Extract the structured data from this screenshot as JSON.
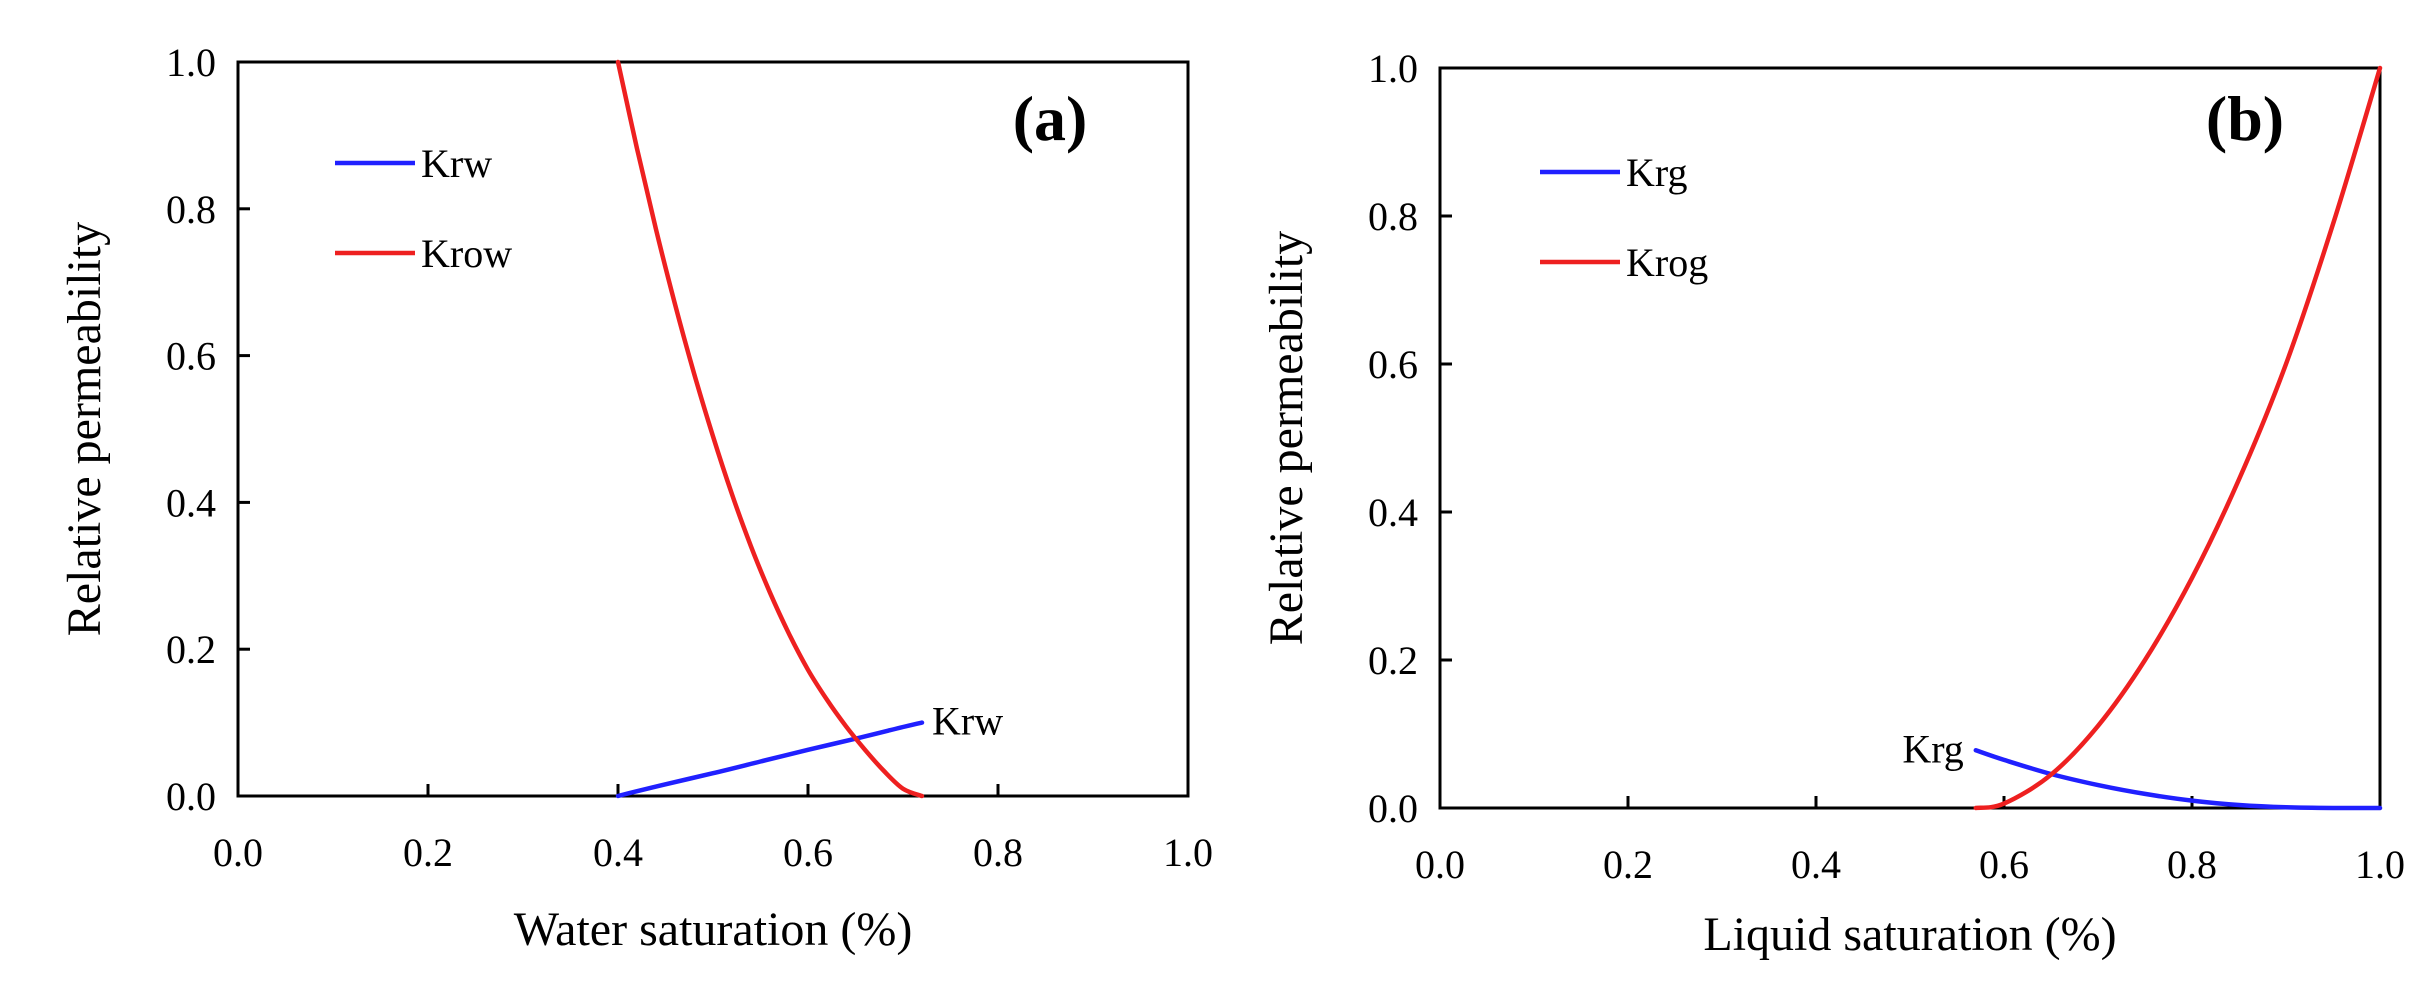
{
  "chart_data": [
    {
      "type": "line",
      "panel_label": "(a)",
      "xlabel": "Water saturation (%)",
      "ylabel": "Relative permeability",
      "xlim": [
        0.0,
        1.0
      ],
      "ylim": [
        0.0,
        1.0
      ],
      "xticks": [
        "0.0",
        "0.2",
        "0.4",
        "0.6",
        "0.8",
        "1.0"
      ],
      "yticks": [
        "0.0",
        "0.2",
        "0.4",
        "0.6",
        "0.8",
        "1.0"
      ],
      "grid": false,
      "legend_position": "top-left",
      "series": [
        {
          "name": "Krw",
          "color": "#2020ff",
          "x": [
            0.4,
            0.45,
            0.5,
            0.55,
            0.6,
            0.65,
            0.7,
            0.72
          ],
          "y": [
            0.0,
            0.016,
            0.031,
            0.047,
            0.063,
            0.078,
            0.094,
            0.1
          ]
        },
        {
          "name": "Krow",
          "color": "#ee2020",
          "x": [
            0.4,
            0.42,
            0.44,
            0.46,
            0.48,
            0.5,
            0.52,
            0.54,
            0.56,
            0.58,
            0.6,
            0.62,
            0.64,
            0.66,
            0.68,
            0.7,
            0.72
          ],
          "y": [
            1.0,
            0.882,
            0.772,
            0.67,
            0.576,
            0.49,
            0.411,
            0.34,
            0.277,
            0.221,
            0.172,
            0.131,
            0.095,
            0.063,
            0.034,
            0.01,
            0.0
          ]
        }
      ],
      "annotations": [
        {
          "text": "Krw",
          "x": 0.72,
          "y": 0.1
        }
      ]
    },
    {
      "type": "line",
      "panel_label": "(b)",
      "xlabel": "Liquid saturation (%)",
      "ylabel": "Relative permeability",
      "xlim": [
        0.0,
        1.0
      ],
      "ylim": [
        0.0,
        1.0
      ],
      "xticks": [
        "0.0",
        "0.2",
        "0.4",
        "0.6",
        "0.8",
        "1.0"
      ],
      "yticks": [
        "0.0",
        "0.2",
        "0.4",
        "0.6",
        "0.8",
        "1.0"
      ],
      "grid": false,
      "legend_position": "top-left",
      "series": [
        {
          "name": "Krg",
          "color": "#2020ff",
          "x": [
            0.57,
            0.6,
            0.65,
            0.7,
            0.75,
            0.8,
            0.85,
            0.9,
            0.95,
            1.0
          ],
          "y": [
            0.078,
            0.065,
            0.046,
            0.031,
            0.019,
            0.01,
            0.004,
            0.001,
            0.0,
            0.0
          ]
        },
        {
          "name": "Krog",
          "color": "#ee2020",
          "x": [
            0.57,
            0.6,
            0.65,
            0.7,
            0.75,
            0.8,
            0.85,
            0.9,
            0.95,
            1.0
          ],
          "y": [
            0.0,
            0.006,
            0.045,
            0.111,
            0.2,
            0.311,
            0.444,
            0.6,
            0.789,
            1.0
          ]
        }
      ],
      "annotations": [
        {
          "text": "Krg",
          "x": 0.57,
          "y": 0.078
        }
      ]
    }
  ]
}
